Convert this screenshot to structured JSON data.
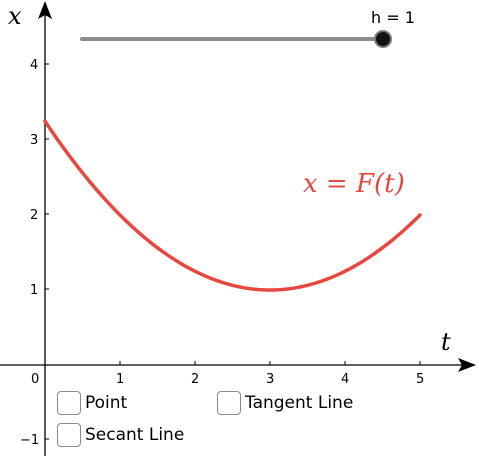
{
  "axes": {
    "x_name": "t",
    "y_name": "x",
    "x_ticks": [
      "0",
      "1",
      "2",
      "3",
      "4",
      "5"
    ],
    "y_ticks": [
      "4",
      "3",
      "2",
      "1",
      "−1"
    ]
  },
  "slider": {
    "label": "h = 1",
    "value": 1,
    "position_fraction": 1.0
  },
  "curve": {
    "label": "x = F(t)",
    "color": "#e8473f",
    "t_range": [
      0,
      5
    ],
    "min_point": {
      "t": 3,
      "x": 1
    },
    "start_value": 3.25,
    "end_value": 2
  },
  "checkboxes": {
    "point": {
      "label": "Point",
      "checked": false
    },
    "tangent": {
      "label": "Tangent Line",
      "checked": false
    },
    "secant": {
      "label": "Secant Line",
      "checked": false
    }
  }
}
